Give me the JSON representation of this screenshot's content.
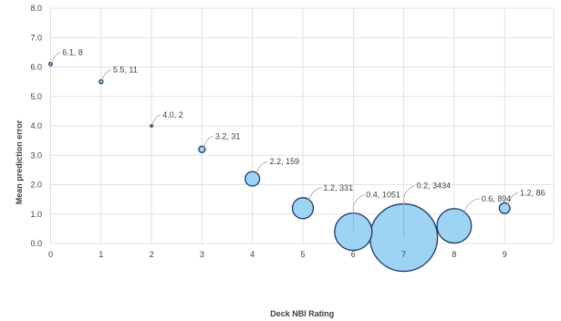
{
  "chart_data": {
    "type": "bubble",
    "title": "",
    "xlabel": "Deck NBI Rating",
    "ylabel": "Mean prediction error",
    "xlim": [
      0,
      10
    ],
    "ylim": [
      0,
      8
    ],
    "x_ticks": [
      "0",
      "1",
      "2",
      "3",
      "4",
      "5",
      "6",
      "7",
      "8",
      "9"
    ],
    "y_ticks": [
      "0.0",
      "1.0",
      "2.0",
      "3.0",
      "4.0",
      "5.0",
      "6.0",
      "7.0",
      "8.0"
    ],
    "grid": true,
    "bubble_color": "#9dd3f3",
    "bubble_edge_color": "#1f3864",
    "points": [
      {
        "x": 0,
        "y": 6.1,
        "size": 8,
        "label": "6.1, 8"
      },
      {
        "x": 1,
        "y": 5.5,
        "size": 11,
        "label": "5.5, 11"
      },
      {
        "x": 2,
        "y": 4.0,
        "size": 2,
        "label": "4.0, 2"
      },
      {
        "x": 3,
        "y": 3.2,
        "size": 31,
        "label": "3.2, 31"
      },
      {
        "x": 4,
        "y": 2.2,
        "size": 159,
        "label": "2.2, 159"
      },
      {
        "x": 5,
        "y": 1.2,
        "size": 331,
        "label": "1.2, 331"
      },
      {
        "x": 6,
        "y": 0.4,
        "size": 1051,
        "label": "0.4, 1051"
      },
      {
        "x": 7,
        "y": 0.2,
        "size": 3434,
        "label": "0.2, 3434"
      },
      {
        "x": 8,
        "y": 0.6,
        "size": 894,
        "label": "0.6, 894"
      },
      {
        "x": 9,
        "y": 1.2,
        "size": 86,
        "label": "1.2, 86"
      }
    ]
  }
}
